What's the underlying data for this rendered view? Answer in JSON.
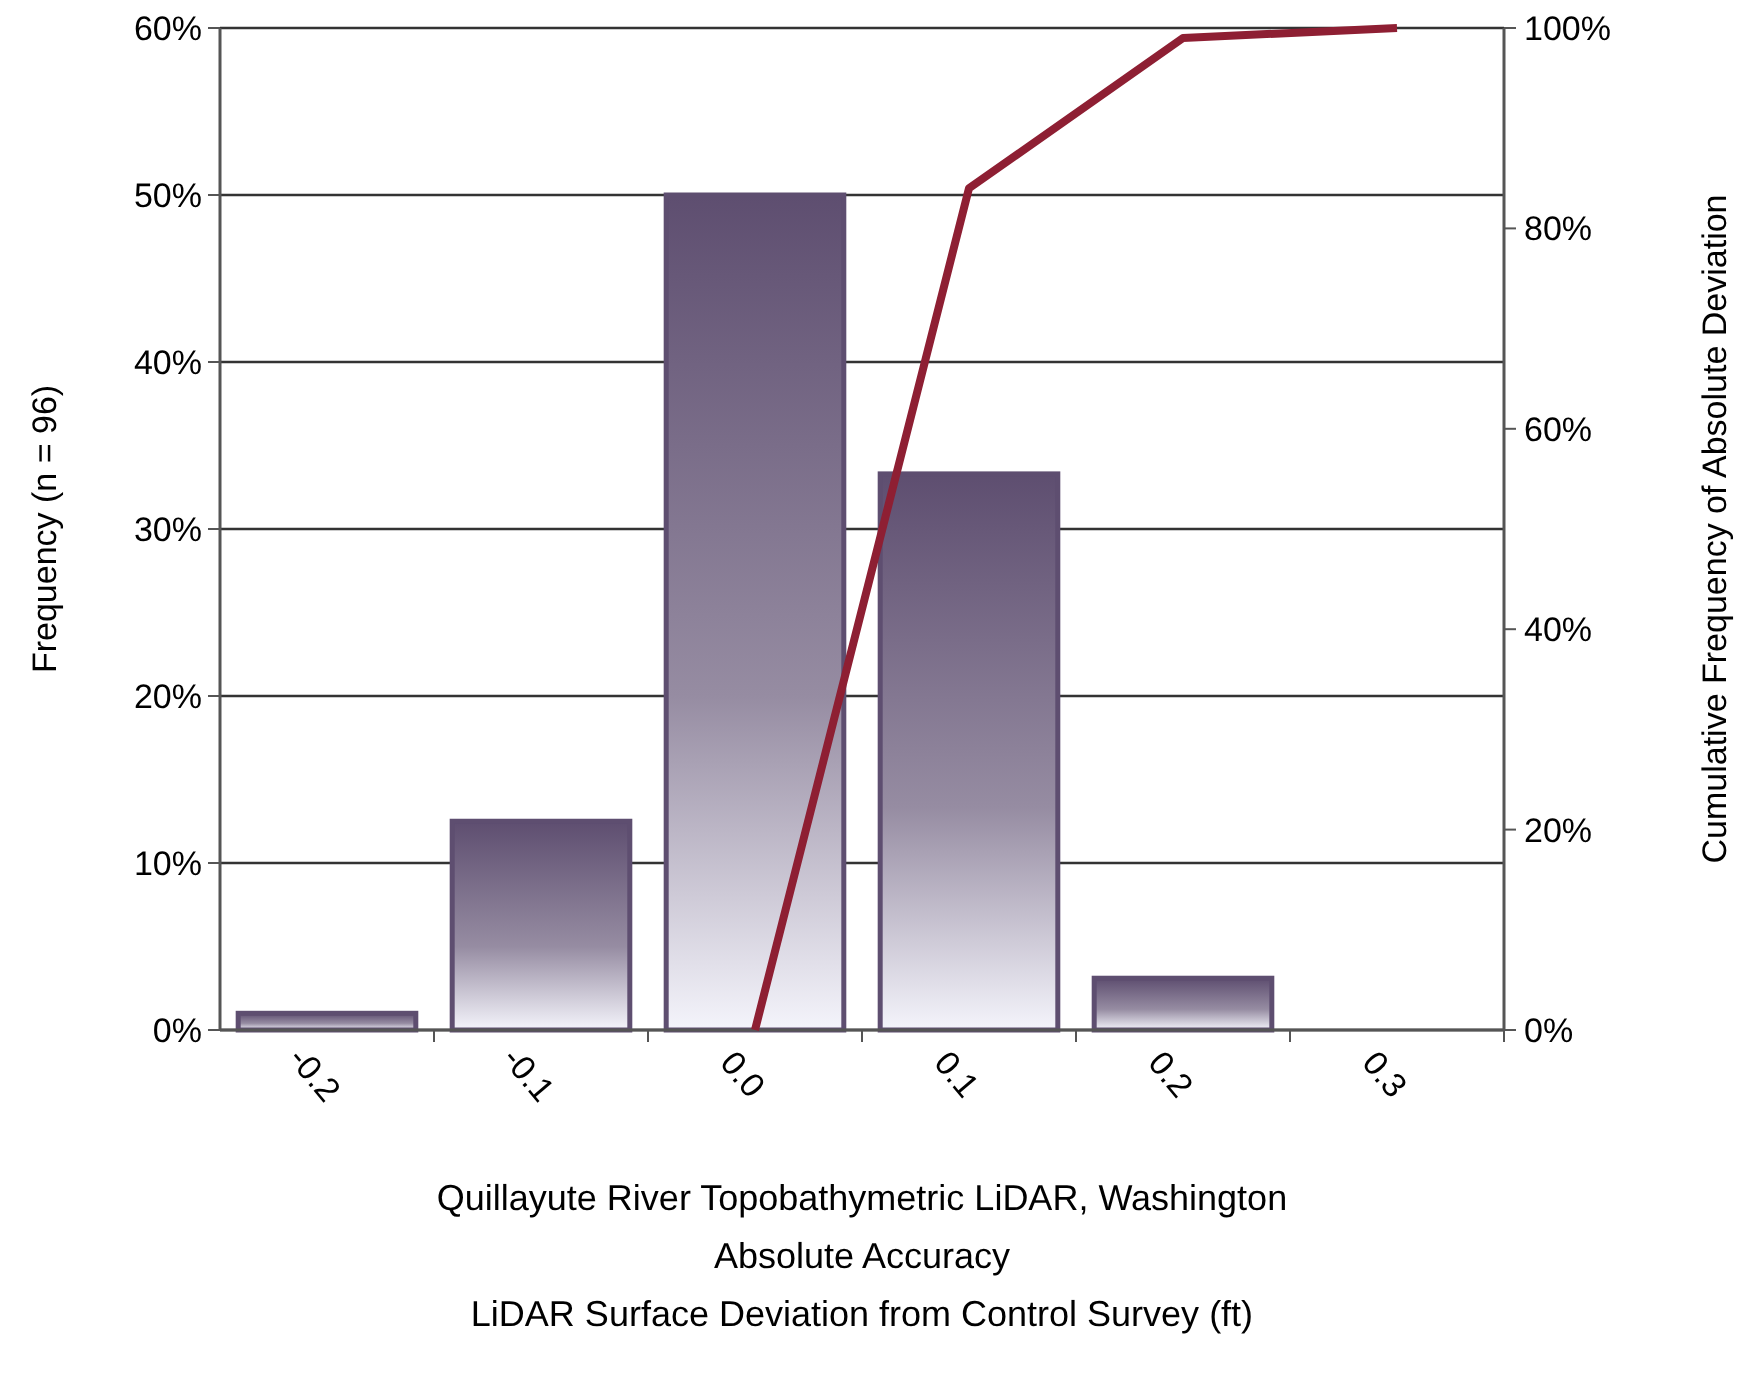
{
  "chart_data": {
    "type": "bar",
    "xlabel": "Quillayute River Topobathymetric LiDAR, Washington\nAbsolute Accuracy\nLiDAR Surface Deviation from Control Survey (ft)",
    "ylabel": "Frequency (n = 96)",
    "y2label": "Cumulative Frequency of Absolute Deviation",
    "categories": [
      "-0.2",
      "-0.1",
      "0.0",
      "0.1",
      "0.2",
      "0.3"
    ],
    "series": [
      {
        "color": "#5e4e70",
        "values": [
          1,
          12.5,
          50,
          33.3,
          3.1,
          0
        ]
      },
      {
        "type": "line",
        "axis": "y2",
        "color": "#8e1f33",
        "values": [
          null,
          null,
          0,
          84,
          99,
          100
        ]
      }
    ],
    "ylim": [
      0,
      60
    ],
    "yticks": [
      {
        "value": 0,
        "label": "0%"
      },
      {
        "value": 10,
        "label": "10%"
      },
      {
        "value": 20,
        "label": "20%"
      },
      {
        "value": 30,
        "label": "30%"
      },
      {
        "value": 40,
        "label": "40%"
      },
      {
        "value": 50,
        "label": "50%"
      },
      {
        "value": 60,
        "label": "60%"
      }
    ],
    "y2lim": [
      0,
      100
    ],
    "y2ticks": [
      {
        "value": 0,
        "label": "0%"
      },
      {
        "value": 20,
        "label": "20%"
      },
      {
        "value": 40,
        "label": "40%"
      },
      {
        "value": 60,
        "label": "60%"
      },
      {
        "value": 80,
        "label": "80%"
      },
      {
        "value": 100,
        "label": "100%"
      }
    ],
    "grid": "y",
    "marker": "none",
    "line_style": "solid"
  }
}
